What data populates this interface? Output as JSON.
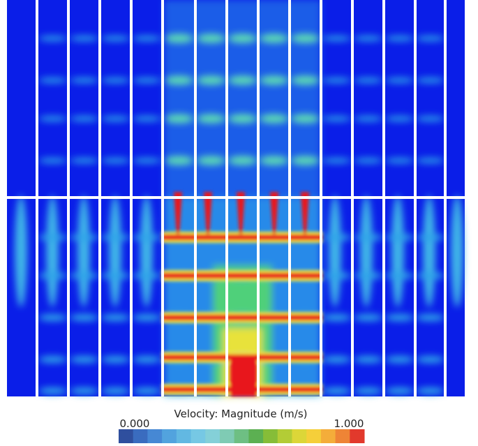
{
  "colorbar": {
    "title": "Velocity: Magnitude (m/s)",
    "min_label": "0.000",
    "max_label": "1.000",
    "colors": [
      "#2f4f9e",
      "#3a6cbf",
      "#4688d4",
      "#52a3de",
      "#62b8e2",
      "#76c8e4",
      "#84d0d8",
      "#7fcbb4",
      "#6ebf83",
      "#5cb052",
      "#86bd38",
      "#b3cc36",
      "#dcd638",
      "#f5cf3a",
      "#f4ad3a",
      "#ee8436",
      "#e2392c"
    ]
  }
}
